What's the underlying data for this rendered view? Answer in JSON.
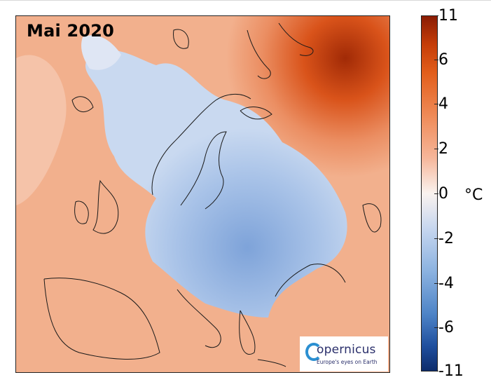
{
  "map": {
    "title": "Mai 2020"
  },
  "colorbar": {
    "unit": "°C",
    "ticks": [
      "11",
      "6",
      "4",
      "2",
      "0",
      "-2",
      "-4",
      "-6",
      "-11"
    ],
    "colors": {
      "max": "#8a1c04",
      "warm": "#e25e1b",
      "neutral": "#faf3ef",
      "cool": "#8bb2e0",
      "min": "#0d2c6b"
    }
  },
  "logo": {
    "name": "opernicus",
    "tagline": "Europe's eyes on Earth"
  }
}
